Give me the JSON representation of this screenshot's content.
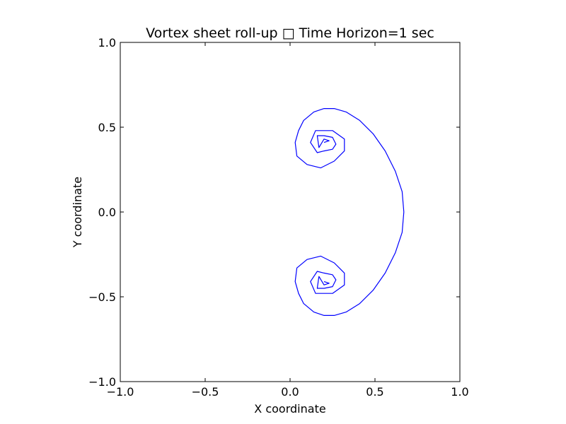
{
  "chart_data": {
    "type": "line",
    "title": "Vortex sheet roll-up □ Time Horizon=1 sec",
    "xlabel": "X coordinate",
    "ylabel": "Y coordinate",
    "xlim": [
      -1.0,
      1.0
    ],
    "ylim": [
      -1.0,
      1.0
    ],
    "xticks": [
      -1.0,
      -0.5,
      0.0,
      0.5,
      1.0
    ],
    "yticks": [
      -1.0,
      -0.5,
      0.0,
      0.5,
      1.0
    ],
    "xtick_labels": [
      "−1.0",
      "−0.5",
      "0.0",
      "0.5",
      "1.0"
    ],
    "ytick_labels": [
      "−1.0",
      "−0.5",
      "0.0",
      "0.5",
      "1.0"
    ],
    "grid": false,
    "series_color": "#0000ff",
    "series": [
      {
        "x": [
          0.2,
          0.23,
          0.2,
          0.17,
          0.16,
          0.2,
          0.25,
          0.27,
          0.25,
          0.2,
          0.16,
          0.12,
          0.15,
          0.25,
          0.32,
          0.32,
          0.26,
          0.18,
          0.1,
          0.04,
          0.03,
          0.05,
          0.08,
          0.14,
          0.2,
          0.26,
          0.33,
          0.41,
          0.49,
          0.56,
          0.62,
          0.66,
          0.67,
          0.66,
          0.62,
          0.56,
          0.49,
          0.41,
          0.33,
          0.26,
          0.2,
          0.14,
          0.08,
          0.05,
          0.03,
          0.04,
          0.1,
          0.18,
          0.26,
          0.32,
          0.32,
          0.25,
          0.15,
          0.12,
          0.16,
          0.2,
          0.25,
          0.27,
          0.25,
          0.2,
          0.16,
          0.17,
          0.2,
          0.23,
          0.2
        ],
        "y": [
          0.41,
          0.42,
          0.43,
          0.38,
          0.45,
          0.45,
          0.44,
          0.4,
          0.37,
          0.36,
          0.35,
          0.41,
          0.48,
          0.48,
          0.43,
          0.36,
          0.3,
          0.26,
          0.28,
          0.33,
          0.41,
          0.48,
          0.54,
          0.59,
          0.61,
          0.61,
          0.59,
          0.54,
          0.46,
          0.36,
          0.24,
          0.12,
          0.0,
          -0.12,
          -0.24,
          -0.36,
          -0.46,
          -0.54,
          -0.59,
          -0.61,
          -0.61,
          -0.59,
          -0.54,
          -0.48,
          -0.41,
          -0.33,
          -0.28,
          -0.26,
          -0.3,
          -0.36,
          -0.43,
          -0.48,
          -0.48,
          -0.41,
          -0.35,
          -0.36,
          -0.37,
          -0.4,
          -0.44,
          -0.45,
          -0.45,
          -0.38,
          -0.43,
          -0.42,
          -0.41
        ]
      }
    ]
  }
}
